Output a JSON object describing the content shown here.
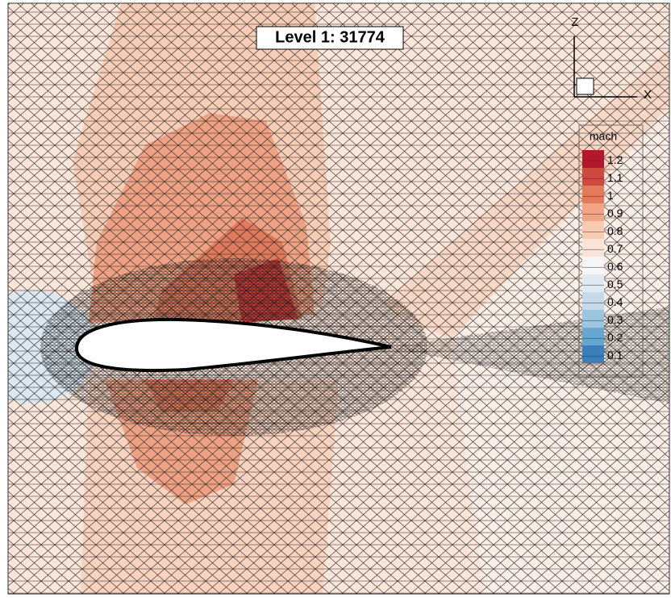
{
  "title": "Level 1: 31774",
  "axes": {
    "z": "Z",
    "x": "X"
  },
  "legend": {
    "title": "mach",
    "levels": [
      1.2,
      1.1,
      1,
      0.9,
      0.8,
      0.7,
      0.6,
      0.5,
      0.4,
      0.3,
      0.2,
      0.1
    ],
    "colors": [
      "#b2182b",
      "#cd4a3e",
      "#e27b5b",
      "#f2a585",
      "#f9cbb1",
      "#fbe4d7",
      "#f7f7f7",
      "#e0eaf3",
      "#c5daeb",
      "#9cc6df",
      "#68a6cf",
      "#3a7fba"
    ]
  }
}
